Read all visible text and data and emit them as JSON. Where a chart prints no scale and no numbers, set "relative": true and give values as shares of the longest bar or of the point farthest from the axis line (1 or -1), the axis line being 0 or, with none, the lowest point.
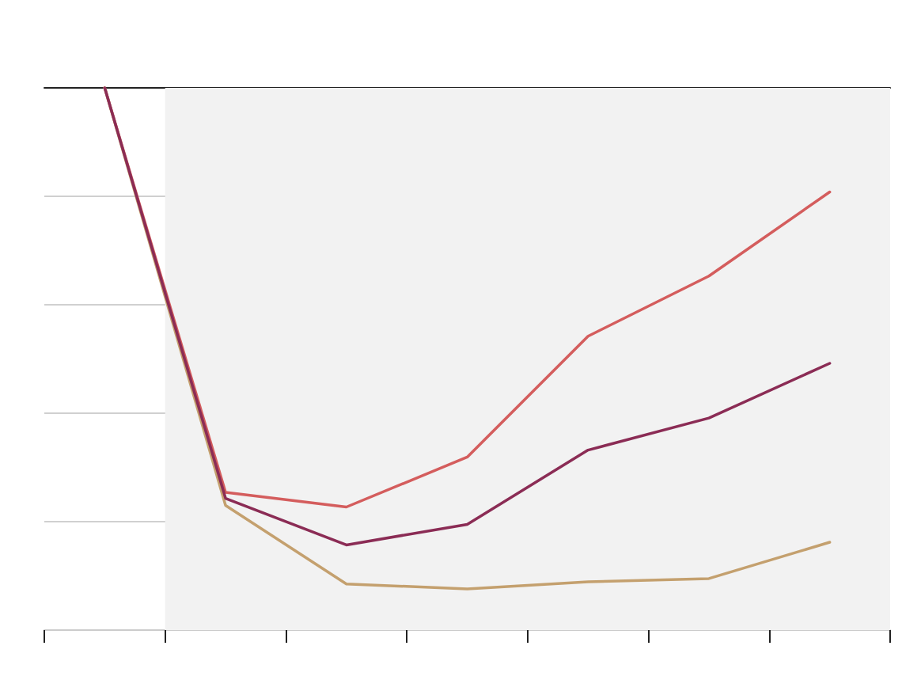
{
  "chart_data": {
    "type": "line",
    "relative": true,
    "categories": [
      null,
      null,
      null,
      null,
      null,
      null,
      null
    ],
    "series": [
      {
        "color": "#d45d5d",
        "values": [
          1,
          0.254,
          0.227,
          0.319,
          0.542,
          0.653,
          0.808
        ]
      },
      {
        "color": "#c4a06e",
        "values": [
          1,
          0.23,
          0.085,
          0.076,
          0.089,
          0.095,
          0.162
        ]
      },
      {
        "color": "#8b2c55",
        "values": [
          1,
          0.243,
          0.157,
          0.195,
          0.332,
          0.391,
          0.492
        ]
      }
    ],
    "grid": "y",
    "marker": "none",
    "line_style": "solid"
  }
}
